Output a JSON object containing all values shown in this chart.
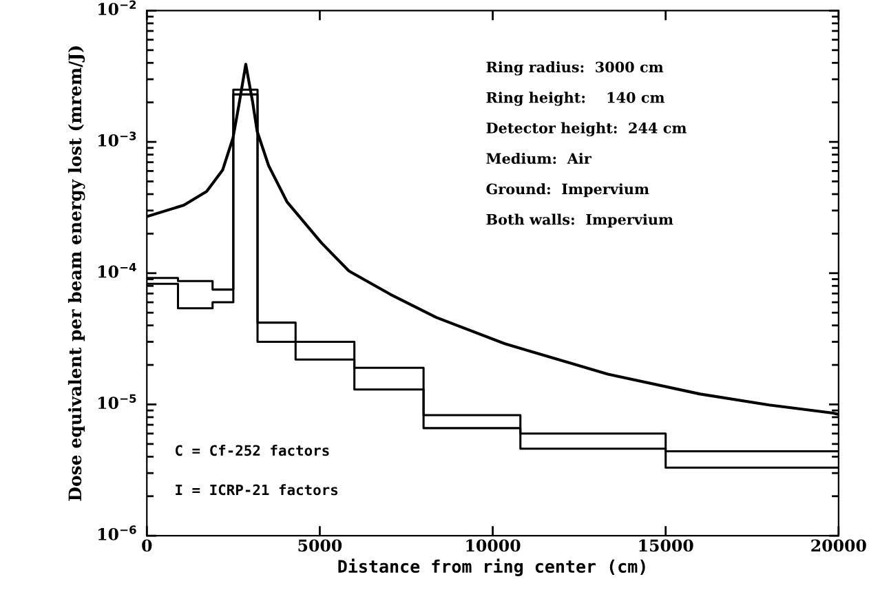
{
  "chart_data": {
    "type": "line",
    "xlabel": "Distance from ring center (cm)",
    "ylabel": "Dose equivalent per beam energy lost (mrem/J)",
    "series": [
      {
        "type": "step",
        "color": "#000000",
        "x": [
          0,
          900,
          1900,
          2500,
          3200,
          4300,
          6000,
          8000,
          10800,
          15000,
          20000
        ],
        "values": [
          9.2e-05,
          8.7e-05,
          7.5e-05,
          0.0025,
          4.2e-05,
          3e-05,
          1.9e-05,
          8.3e-06,
          6e-06,
          4.4e-06,
          4.4e-06
        ]
      },
      {
        "type": "step",
        "color": "#000000",
        "x": [
          0,
          900,
          1900,
          2500,
          3200,
          4300,
          6000,
          8000,
          10800,
          15000,
          20000
        ],
        "values": [
          8.3e-05,
          5.4e-05,
          6e-05,
          0.0023,
          3e-05,
          2.2e-05,
          1.3e-05,
          6.6e-06,
          4.6e-06,
          3.3e-06,
          3.3e-06
        ]
      },
      {
        "color": "#000000",
        "x": [
          0,
          1070,
          1730,
          2190,
          2490,
          2660,
          2860,
          3060,
          3190,
          3520,
          4050,
          5050,
          5840,
          7040,
          8370,
          10350,
          13330,
          16000,
          17990,
          19840,
          20000
        ],
        "values": [
          0.00027,
          0.00033,
          0.00042,
          0.00061,
          0.00107,
          0.0019,
          0.0039,
          0.002,
          0.0012,
          0.00066,
          0.00035,
          0.00017,
          0.000104,
          6.9e-05,
          4.6e-05,
          2.9e-05,
          1.7e-05,
          1.2e-05,
          9.9e-06,
          8.6e-06,
          8.4e-06
        ]
      }
    ],
    "log": "y",
    "xlim": [
      0,
      20000
    ],
    "xticks": [
      0,
      5000,
      10000,
      15000,
      20000
    ],
    "ylim": [
      1e-06,
      0.01
    ],
    "yticks": [
      {
        "value": 1e-06,
        "label": "10$^{−6}$"
      },
      {
        "value": 1e-05,
        "label": "10$^{−5}$"
      },
      {
        "value": 0.0001,
        "label": "10$^{−4}$"
      },
      {
        "value": 0.001,
        "label": "10$^{−3}$"
      },
      {
        "value": 0.01,
        "label": "10$^{−2}$"
      }
    ],
    "annotations": [
      "Ring radius:  3000 cm",
      "Ring height:    140 cm",
      "Detector height:  244 cm",
      "Medium:  Air",
      "Ground:  Impervium",
      "Both walls:  Impervium",
      "C = Cf-252 factors",
      "I = ICRP-21 factors"
    ],
    "grid": false,
    "legend": false
  }
}
